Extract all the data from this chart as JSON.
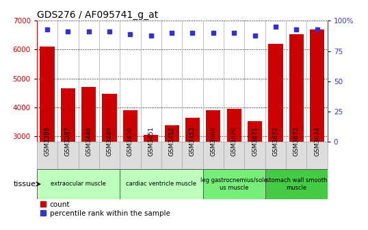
{
  "title": "GDS276 / AF095741_g_at",
  "samples": [
    "GSM3386",
    "GSM3387",
    "GSM3448",
    "GSM3449",
    "GSM3450",
    "GSM3451",
    "GSM3452",
    "GSM3453",
    "GSM3669",
    "GSM3670",
    "GSM3671",
    "GSM3672",
    "GSM3673",
    "GSM3674"
  ],
  "counts": [
    6100,
    4650,
    4700,
    4470,
    3890,
    3040,
    3380,
    3650,
    3900,
    3960,
    3520,
    6200,
    6520,
    6700
  ],
  "percentiles": [
    93,
    91,
    91,
    91,
    89,
    88,
    90,
    90,
    90,
    90,
    88,
    95,
    93,
    93
  ],
  "ylim_left": [
    2800,
    7000
  ],
  "ylim_right": [
    0,
    100
  ],
  "yticks_left": [
    3000,
    4000,
    5000,
    6000,
    7000
  ],
  "yticks_right": [
    0,
    25,
    50,
    75,
    100
  ],
  "bar_color": "#cc0000",
  "dot_color": "#3333cc",
  "grid_color": "#000000",
  "tissue_groups": [
    {
      "label": "extraocular muscle",
      "start": 0,
      "end": 3,
      "color": "#bbffbb"
    },
    {
      "label": "cardiac ventricle muscle",
      "start": 4,
      "end": 7,
      "color": "#bbffbb"
    },
    {
      "label": "leg gastrocnemius/sole\nus muscle",
      "start": 8,
      "end": 10,
      "color": "#77ee77"
    },
    {
      "label": "stomach wall smooth\nmuscle",
      "start": 11,
      "end": 13,
      "color": "#44cc44"
    }
  ],
  "tissue_label": "tissue",
  "legend_count_label": "count",
  "legend_pct_label": "percentile rank within the sample",
  "bg_color": "#f0f0f0",
  "plot_bg": "#ffffff",
  "xticklabel_bg": "#dddddd",
  "spine_color": "#333333"
}
